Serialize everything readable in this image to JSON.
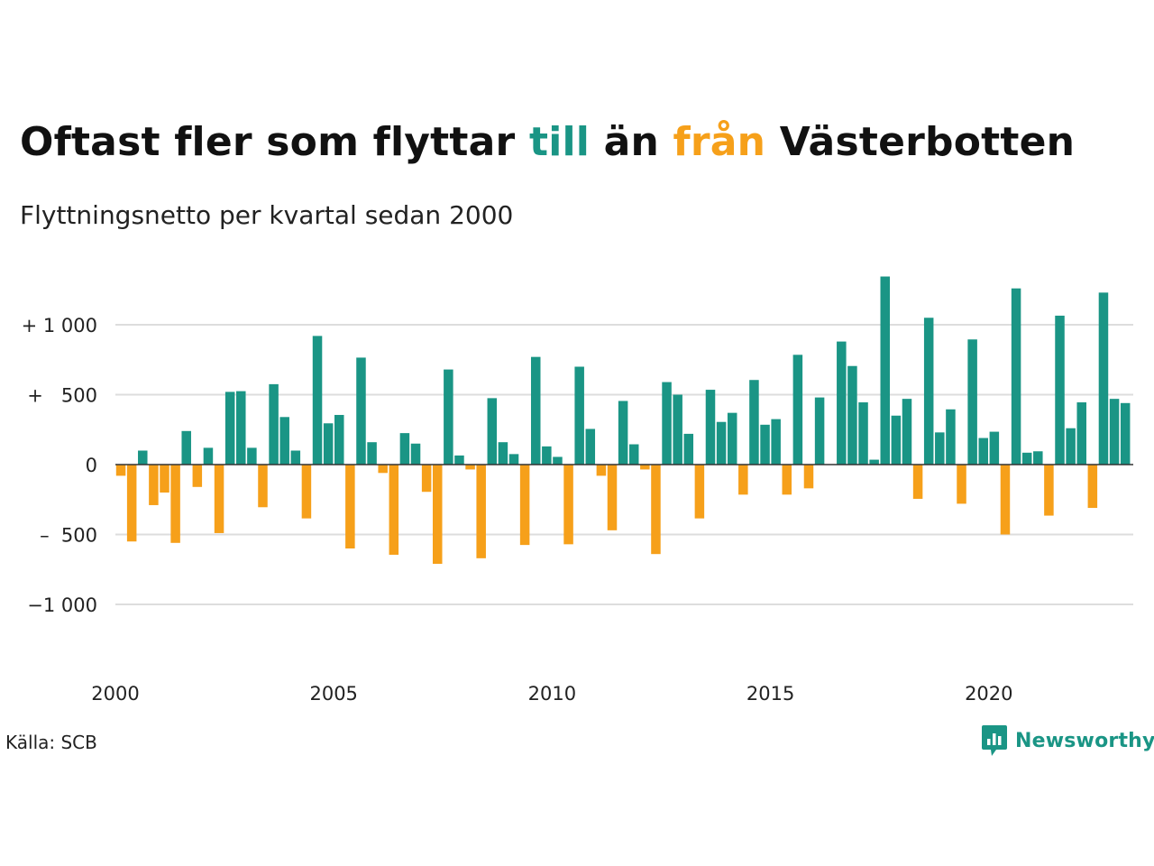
{
  "colors": {
    "positive": "#1a9585",
    "negative": "#f6a01a",
    "grid": "#dddddd",
    "baseline": "#333333"
  },
  "title": {
    "part1": "Oftast fler som flyttar ",
    "word_pos": "till",
    "part2": " än ",
    "word_neg": "från",
    "part3": " Västerbotten"
  },
  "subtitle": "Flyttningsnetto per kvartal sedan 2000",
  "source": "Källa: SCB",
  "brand": {
    "name": "Newsworthy",
    "icon": "newsworthy-logo-icon"
  },
  "chart_data": {
    "type": "bar",
    "x_start": "2000 Q1",
    "y_tick_values": [
      1000,
      500,
      0,
      -500,
      -1000
    ],
    "y_tick_labels": [
      "+ 1 000",
      "+   500",
      "0",
      "–  500",
      "−1 000"
    ],
    "x_tick_values": [
      2000,
      2005,
      2010,
      2015,
      2020
    ],
    "x_tick_labels": [
      "2000",
      "2005",
      "2010",
      "2015",
      "2020"
    ],
    "ylim": [
      -1400,
      1400
    ],
    "grid": true,
    "values": [
      -80,
      -550,
      100,
      -290,
      -200,
      -560,
      240,
      -160,
      120,
      -490,
      520,
      525,
      120,
      -305,
      575,
      340,
      100,
      -385,
      920,
      295,
      355,
      -600,
      765,
      160,
      -60,
      -645,
      225,
      150,
      -195,
      -710,
      680,
      65,
      -35,
      -670,
      475,
      160,
      75,
      -575,
      770,
      130,
      55,
      -570,
      700,
      255,
      -80,
      -470,
      455,
      145,
      -35,
      -640,
      590,
      500,
      220,
      -385,
      535,
      305,
      370,
      -215,
      605,
      285,
      325,
      -215,
      785,
      -170,
      480,
      0,
      880,
      705,
      445,
      35,
      1345,
      350,
      470,
      -245,
      1050,
      230,
      395,
      -280,
      895,
      190,
      235,
      -500,
      1260,
      85,
      95,
      -365,
      1065,
      260,
      445,
      -310,
      1230,
      470,
      440
    ]
  }
}
